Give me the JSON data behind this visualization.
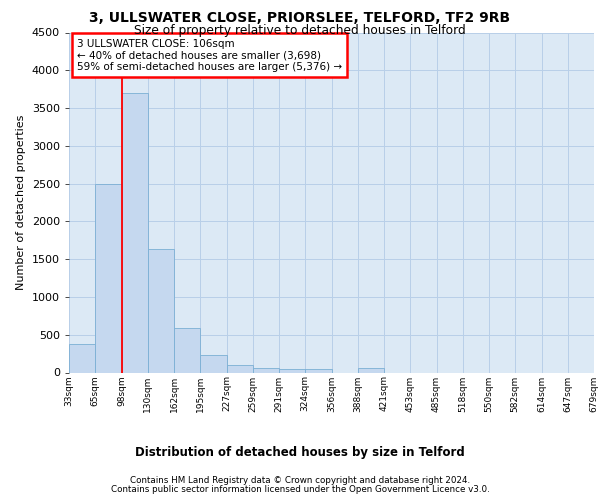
{
  "title1": "3, ULLSWATER CLOSE, PRIORSLEE, TELFORD, TF2 9RB",
  "title2": "Size of property relative to detached houses in Telford",
  "xlabel": "Distribution of detached houses by size in Telford",
  "ylabel": "Number of detached properties",
  "footer1": "Contains HM Land Registry data © Crown copyright and database right 2024.",
  "footer2": "Contains public sector information licensed under the Open Government Licence v3.0.",
  "annotation_line1": "3 ULLSWATER CLOSE: 106sqm",
  "annotation_line2": "← 40% of detached houses are smaller (3,698)",
  "annotation_line3": "59% of semi-detached houses are larger (5,376) →",
  "bar_values": [
    375,
    2500,
    3700,
    1630,
    590,
    230,
    105,
    60,
    40,
    40,
    0,
    55,
    0,
    0,
    0,
    0,
    0,
    0,
    0,
    0
  ],
  "categories": [
    "33sqm",
    "65sqm",
    "98sqm",
    "130sqm",
    "162sqm",
    "195sqm",
    "227sqm",
    "259sqm",
    "291sqm",
    "324sqm",
    "356sqm",
    "388sqm",
    "421sqm",
    "453sqm",
    "485sqm",
    "518sqm",
    "550sqm",
    "582sqm",
    "614sqm",
    "647sqm",
    "679sqm"
  ],
  "bar_color": "#c5d8ef",
  "bar_edge_color": "#7bafd4",
  "ylim": [
    0,
    4500
  ],
  "yticks": [
    0,
    500,
    1000,
    1500,
    2000,
    2500,
    3000,
    3500,
    4000,
    4500
  ],
  "plot_bg_color": "#dce9f5",
  "grid_color": "#b8cfe8"
}
